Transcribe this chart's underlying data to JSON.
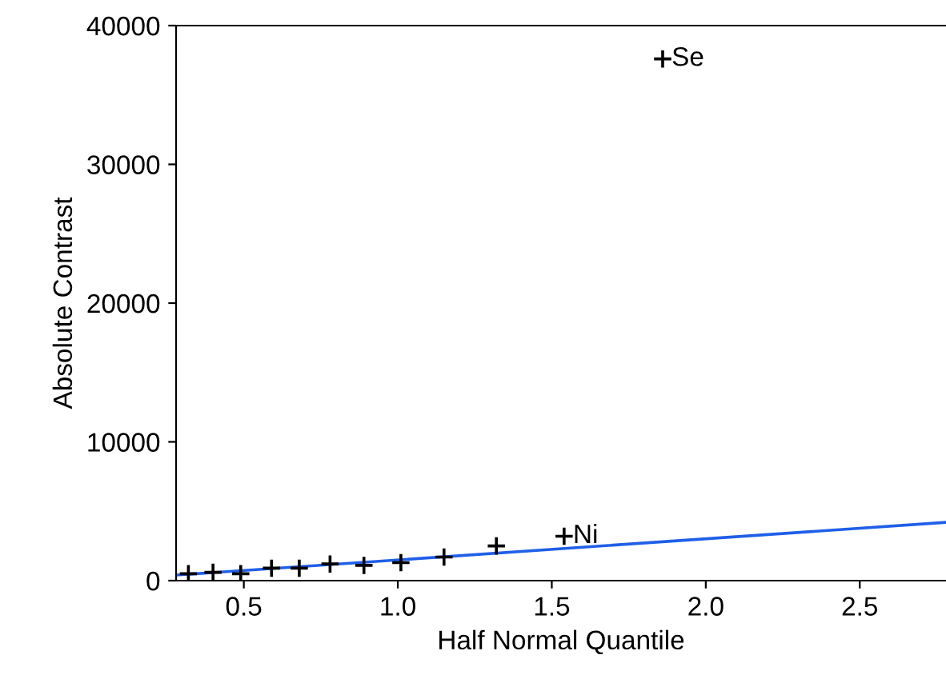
{
  "chart_data": {
    "type": "scatter",
    "xlabel": "Half Normal Quantile",
    "ylabel": "Absolute Contrast",
    "xlim": [
      0.28,
      2.78
    ],
    "xticks": [
      0.5,
      {
        "value": 1,
        "label": "1.0"
      },
      1.5,
      {
        "value": 2,
        "label": "2.0"
      },
      2.5
    ],
    "ylim": [
      0,
      40000
    ],
    "yticks": [
      0,
      10000,
      20000,
      30000,
      40000
    ],
    "grid": false,
    "series": [
      {
        "color": "#000000",
        "marker": "cross",
        "x": [
          0.32,
          0.4,
          0.49,
          0.59,
          0.68,
          0.78,
          0.89,
          1.01,
          1.15,
          1.32,
          1.54,
          1.86
        ],
        "values": [
          500,
          600,
          500,
          900,
          900,
          1200,
          1100,
          1300,
          1700,
          2500,
          3200,
          37600
        ]
      },
      {
        "type": "line",
        "marker": "none",
        "color": "#1f5fe8",
        "x": [
          0.28,
          2.78
        ],
        "values": [
          400,
          4200
        ]
      }
    ],
    "annotations": [
      {
        "text": "Ni",
        "x": 1.54,
        "y": 3200
      },
      {
        "text": "Se",
        "x": 1.86,
        "y": 37600
      }
    ]
  }
}
